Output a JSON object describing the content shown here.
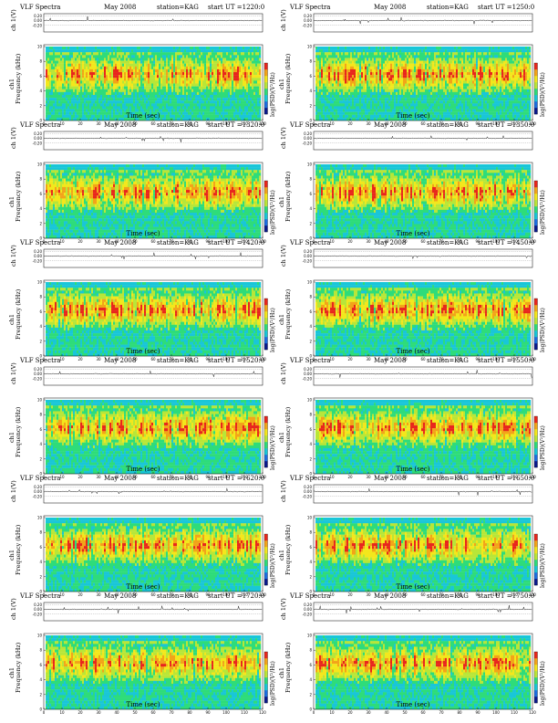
{
  "colors": {
    "colormap": [
      "#0b1a8c",
      "#1e6fe0",
      "#19c6d8",
      "#2edc7a",
      "#b8e638",
      "#f3e71c",
      "#f2a419",
      "#e8261c"
    ],
    "background": "#ffffff",
    "axis": "#000000"
  },
  "chart_data": [
    {
      "type": "heatmap",
      "header_title": "VLF Spectra",
      "month": "May 2008",
      "station": "station=KAG",
      "start": "start UT =1220:0",
      "ch_label": "ch 1(V)",
      "ch1_label": "ch1",
      "freq_label": "Frequency (kHz)",
      "colorbar_label": "log(PSD)(V²/Hz)",
      "xlabel": "Time (sec)",
      "waveform_yticks": [
        "0.20",
        "0.00",
        "-0.20"
      ],
      "xlim": [
        0,
        120
      ],
      "ylim": [
        0,
        10
      ],
      "xticks": [
        0,
        10,
        20,
        30,
        40,
        50,
        60,
        70,
        80,
        90,
        100,
        110,
        120
      ],
      "yticks": [
        0,
        2,
        4,
        6,
        8,
        10
      ],
      "seed": 11
    },
    {
      "type": "heatmap",
      "header_title": "VLF Spectra",
      "month": "May 2008",
      "station": "station=KAG",
      "start": "start UT =1250:0",
      "ch_label": "ch 1(V)",
      "ch1_label": "ch1",
      "freq_label": "Frequency (kHz)",
      "colorbar_label": "log(PSD)(V²/Hz)",
      "xlabel": "Time (sec)",
      "waveform_yticks": [
        "0.20",
        "0.00",
        "-0.20"
      ],
      "xlim": [
        0,
        120
      ],
      "ylim": [
        0,
        10
      ],
      "xticks": [
        0,
        10,
        20,
        30,
        40,
        50,
        60,
        70,
        80,
        90,
        100,
        110,
        120
      ],
      "yticks": [
        0,
        2,
        4,
        6,
        8,
        10
      ],
      "seed": 23
    },
    {
      "type": "heatmap",
      "header_title": "VLF Spectra",
      "month": "May 2008",
      "station": "station=KAG",
      "start": "start UT =1320:0",
      "ch_label": "ch 1(V)",
      "ch1_label": "ch1",
      "freq_label": "Frequency (kHz)",
      "colorbar_label": "log(PSD)(V²/Hz)",
      "xlabel": "Time (sec)",
      "waveform_yticks": [
        "0.20",
        "0.00",
        "-0.20"
      ],
      "xlim": [
        0,
        120
      ],
      "ylim": [
        0,
        10
      ],
      "xticks": [
        0,
        10,
        20,
        30,
        40,
        50,
        60,
        70,
        80,
        90,
        100,
        110,
        120
      ],
      "yticks": [
        0,
        2,
        4,
        6,
        8,
        10
      ],
      "seed": 37
    },
    {
      "type": "heatmap",
      "header_title": "VLF Spectra",
      "month": "May 2008",
      "station": "station=KAG",
      "start": "start UT =1350:0",
      "ch_label": "ch 1(V)",
      "ch1_label": "ch1",
      "freq_label": "Frequency (kHz)",
      "colorbar_label": "log(PSD)(V²/Hz)",
      "xlabel": "Time (sec)",
      "waveform_yticks": [
        "0.20",
        "0.00",
        "-0.20"
      ],
      "xlim": [
        0,
        120
      ],
      "ylim": [
        0,
        10
      ],
      "xticks": [
        0,
        10,
        20,
        30,
        40,
        50,
        60,
        70,
        80,
        90,
        100,
        110,
        120
      ],
      "yticks": [
        0,
        2,
        4,
        6,
        8,
        10
      ],
      "seed": 41
    },
    {
      "type": "heatmap",
      "header_title": "VLF Spectra",
      "month": "May 2008",
      "station": "station=KAG",
      "start": "start UT =1420:0",
      "ch_label": "ch 1(V)",
      "ch1_label": "ch1",
      "freq_label": "Frequency (kHz)",
      "colorbar_label": "log(PSD)(V²/Hz)",
      "xlabel": "Time (sec)",
      "waveform_yticks": [
        "0.20",
        "0.00",
        "-0.20"
      ],
      "xlim": [
        0,
        120
      ],
      "ylim": [
        0,
        10
      ],
      "xticks": [
        0,
        10,
        20,
        30,
        40,
        50,
        60,
        70,
        80,
        90,
        100,
        110,
        120
      ],
      "yticks": [
        0,
        2,
        4,
        6,
        8,
        10
      ],
      "seed": 53
    },
    {
      "type": "heatmap",
      "header_title": "VLF Spectra",
      "month": "May 2008",
      "station": "station=KAG",
      "start": "start UT =1450:0",
      "ch_label": "ch 1(V)",
      "ch1_label": "ch1",
      "freq_label": "Frequency (kHz)",
      "colorbar_label": "log(PSD)(V²/Hz)",
      "xlabel": "Time (sec)",
      "waveform_yticks": [
        "0.20",
        "0.00",
        "-0.20"
      ],
      "xlim": [
        0,
        120
      ],
      "ylim": [
        0,
        10
      ],
      "xticks": [
        0,
        10,
        20,
        30,
        40,
        50,
        60,
        70,
        80,
        90,
        100,
        110,
        120
      ],
      "yticks": [
        0,
        2,
        4,
        6,
        8,
        10
      ],
      "seed": 67
    },
    {
      "type": "heatmap",
      "header_title": "VLF Spectra",
      "month": "May 2008",
      "station": "station=KAG",
      "start": "start UT =1520:0",
      "ch_label": "ch 1(V)",
      "ch1_label": "ch1",
      "freq_label": "Frequency (kHz)",
      "colorbar_label": "log(PSD)(V²/Hz)",
      "xlabel": "Time (sec)",
      "waveform_yticks": [
        "0.20",
        "0.00",
        "-0.20"
      ],
      "xlim": [
        0,
        120
      ],
      "ylim": [
        0,
        10
      ],
      "xticks": [
        0,
        10,
        20,
        30,
        40,
        50,
        60,
        70,
        80,
        90,
        100,
        110,
        120
      ],
      "yticks": [
        0,
        2,
        4,
        6,
        8,
        10
      ],
      "seed": 71
    },
    {
      "type": "heatmap",
      "header_title": "VLF Spectra",
      "month": "May 2008",
      "station": "station=KAG",
      "start": "start UT =1550:0",
      "ch_label": "ch 1(V)",
      "ch1_label": "ch1",
      "freq_label": "Frequency (kHz)",
      "colorbar_label": "log(PSD)(V²/Hz)",
      "xlabel": "Time (sec)",
      "waveform_yticks": [
        "0.20",
        "0.00",
        "-0.20"
      ],
      "xlim": [
        0,
        120
      ],
      "ylim": [
        0,
        10
      ],
      "xticks": [
        0,
        10,
        20,
        30,
        40,
        50,
        60,
        70,
        80,
        90,
        100,
        110,
        120
      ],
      "yticks": [
        0,
        2,
        4,
        6,
        8,
        10
      ],
      "seed": 83
    },
    {
      "type": "heatmap",
      "header_title": "VLF Spectra",
      "month": "May 2008",
      "station": "station=KAG",
      "start": "start UT =1620:0",
      "ch_label": "ch 1(V)",
      "ch1_label": "ch1",
      "freq_label": "Frequency (kHz)",
      "colorbar_label": "log(PSD)(V²/Hz)",
      "xlabel": "Time (sec)",
      "waveform_yticks": [
        "0.20",
        "0.00",
        "-0.20"
      ],
      "xlim": [
        0,
        120
      ],
      "ylim": [
        0,
        10
      ],
      "xticks": [
        0,
        10,
        20,
        30,
        40,
        50,
        60,
        70,
        80,
        90,
        100,
        110,
        120
      ],
      "yticks": [
        0,
        2,
        4,
        6,
        8,
        10
      ],
      "seed": 97
    },
    {
      "type": "heatmap",
      "header_title": "VLF Spectra",
      "month": "May 2008",
      "station": "station=KAG",
      "start": "start UT =1650:0",
      "ch_label": "ch 1(V)",
      "ch1_label": "ch1",
      "freq_label": "Frequency (kHz)",
      "colorbar_label": "log(PSD)(V²/Hz)",
      "xlabel": "Time (sec)",
      "waveform_yticks": [
        "0.20",
        "0.00",
        "-0.20"
      ],
      "xlim": [
        0,
        120
      ],
      "ylim": [
        0,
        10
      ],
      "xticks": [
        0,
        10,
        20,
        30,
        40,
        50,
        60,
        70,
        80,
        90,
        100,
        110,
        120
      ],
      "yticks": [
        0,
        2,
        4,
        6,
        8,
        10
      ],
      "seed": 103
    },
    {
      "type": "heatmap",
      "header_title": "VLF Spectra",
      "month": "May 2008",
      "station": "station=KAG",
      "start": "start UT =1720:0",
      "ch_label": "ch 1(V)",
      "ch1_label": "ch1",
      "freq_label": "Frequency (kHz)",
      "colorbar_label": "log(PSD)(V²/Hz)",
      "xlabel": "Time (sec)",
      "waveform_yticks": [
        "0.20",
        "0.00",
        "-0.20"
      ],
      "xlim": [
        0,
        120
      ],
      "ylim": [
        0,
        10
      ],
      "xticks": [
        0,
        10,
        20,
        30,
        40,
        50,
        60,
        70,
        80,
        90,
        100,
        110,
        120
      ],
      "yticks": [
        0,
        2,
        4,
        6,
        8,
        10
      ],
      "seed": 109
    },
    {
      "type": "heatmap",
      "header_title": "VLF Spectra",
      "month": "May 2008",
      "station": "station=KAG",
      "start": "start UT =1750:0",
      "ch_label": "ch 1(V)",
      "ch1_label": "ch1",
      "freq_label": "Frequency (kHz)",
      "colorbar_label": "log(PSD)(V²/Hz)",
      "xlabel": "Time (sec)",
      "waveform_yticks": [
        "0.20",
        "0.00",
        "-0.20"
      ],
      "xlim": [
        0,
        120
      ],
      "ylim": [
        0,
        10
      ],
      "xticks": [
        0,
        10,
        20,
        30,
        40,
        50,
        60,
        70,
        80,
        90,
        100,
        110,
        120
      ],
      "yticks": [
        0,
        2,
        4,
        6,
        8,
        10
      ],
      "seed": 127
    }
  ]
}
